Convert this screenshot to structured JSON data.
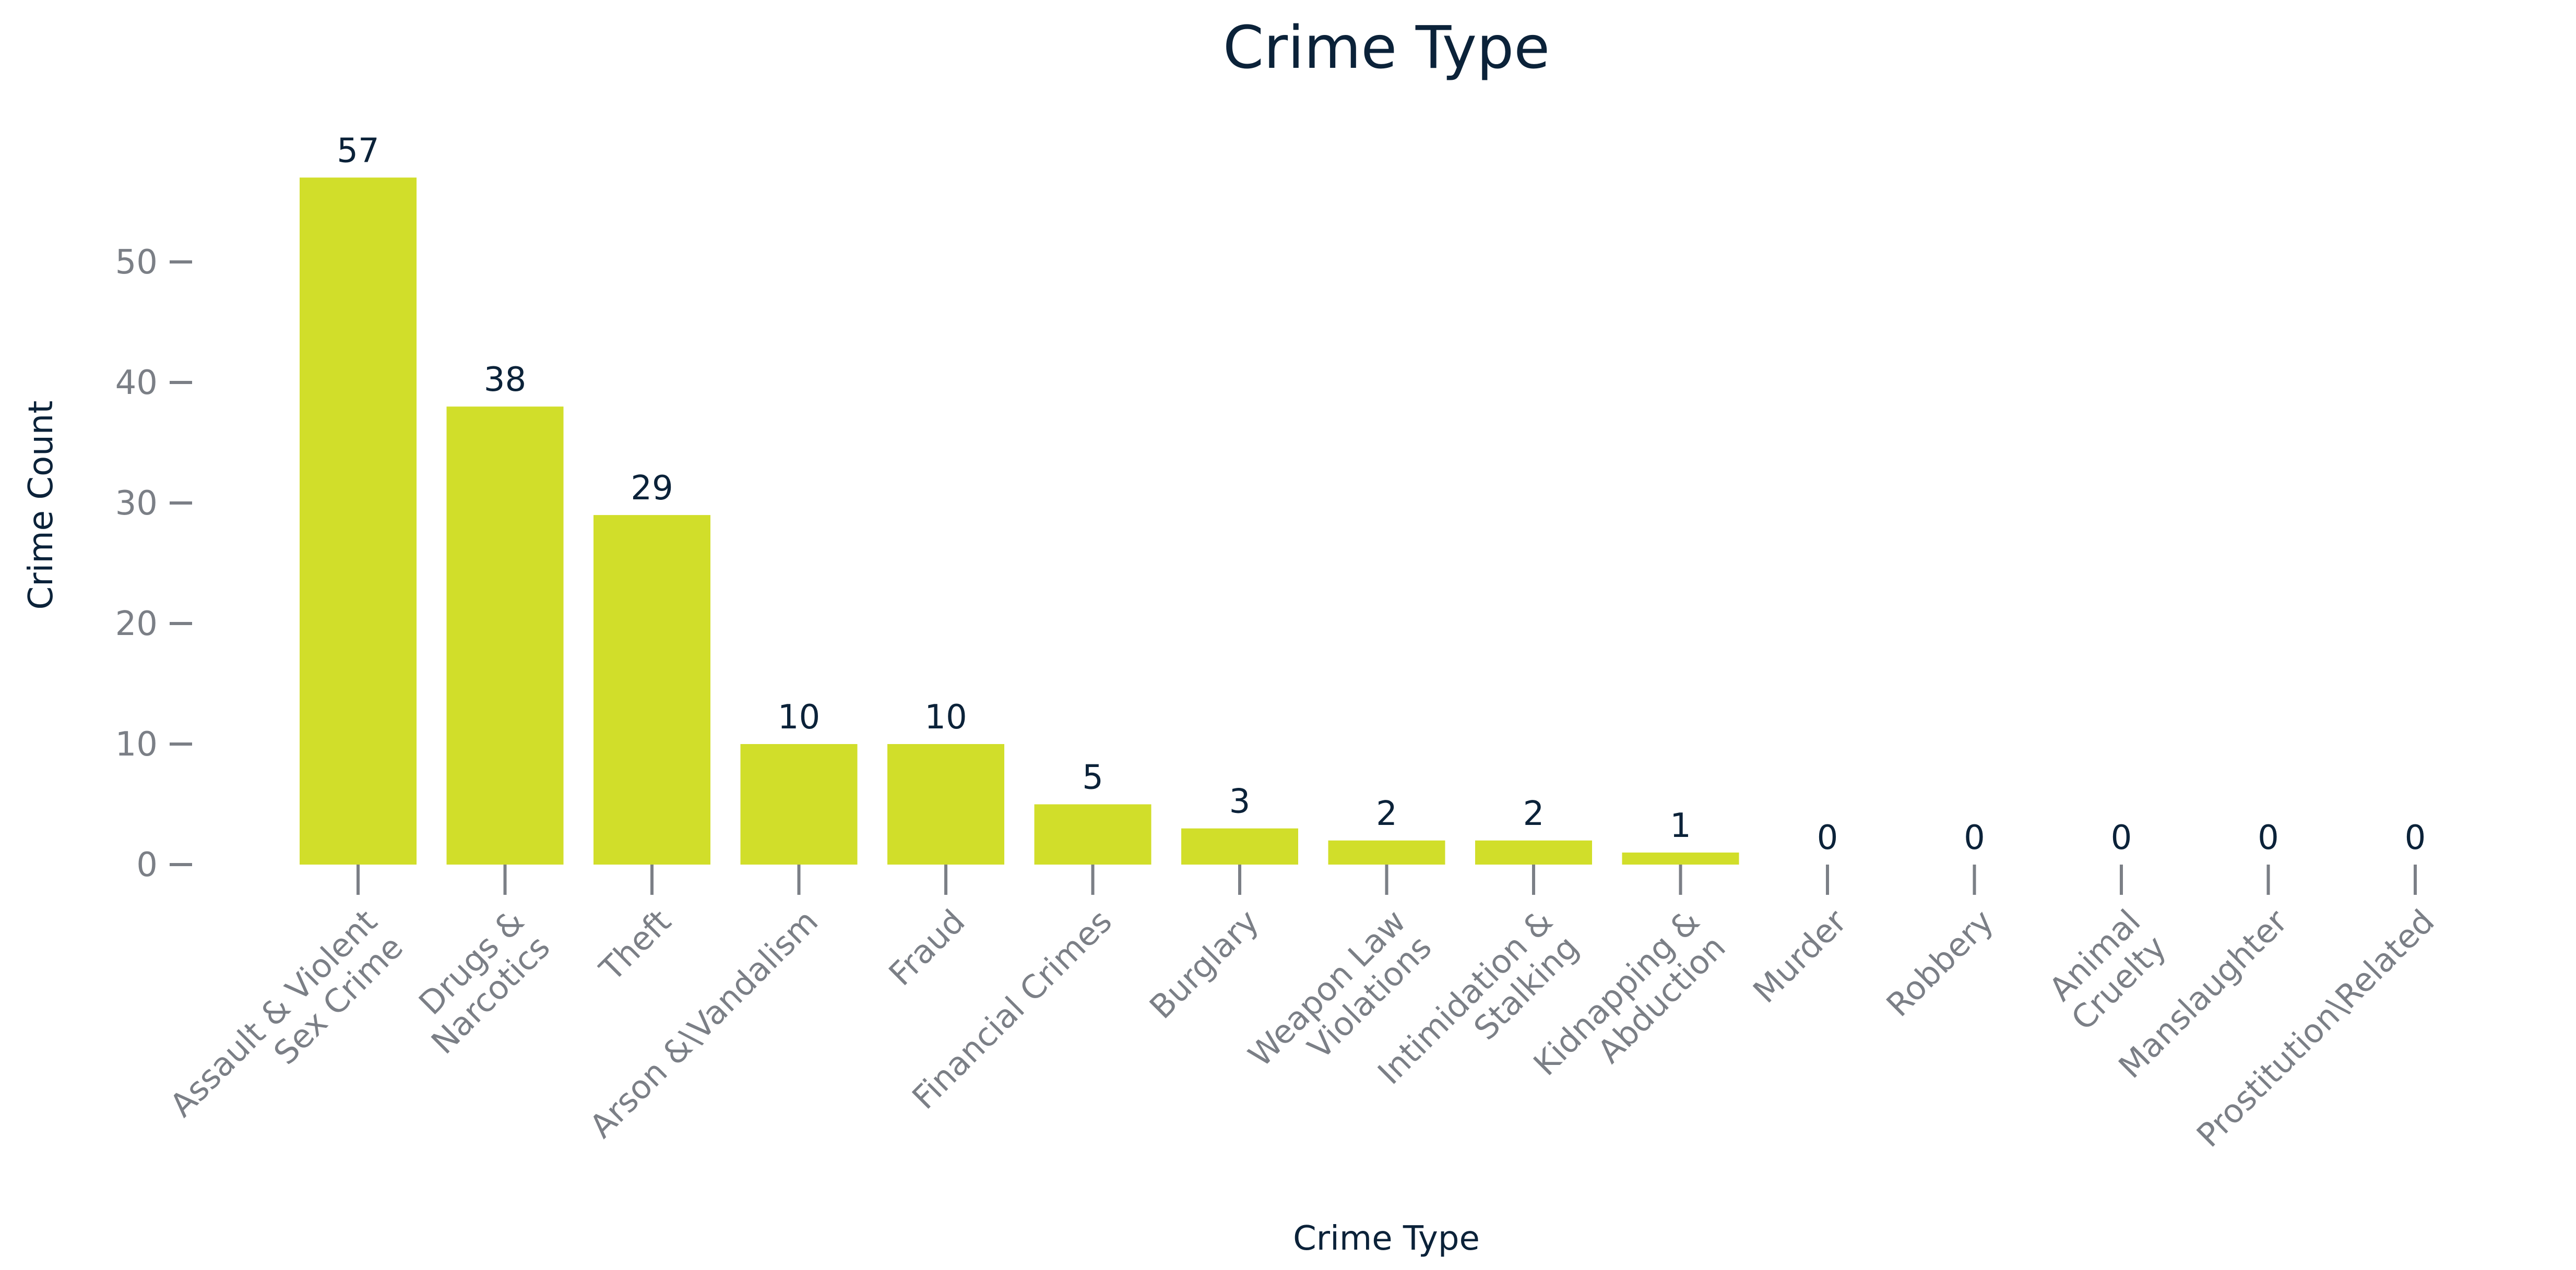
{
  "colors": {
    "bar": "#d1de2a",
    "title_text": "#0b2239",
    "tick_text": "#7b7f86"
  },
  "chart_data": {
    "type": "bar",
    "title": "Crime Type",
    "xlabel": "Crime Type",
    "ylabel": "Crime Count",
    "ylim": [
      0,
      57
    ],
    "yticks": [
      0,
      10,
      20,
      30,
      40,
      50
    ],
    "grid": false,
    "categories": [
      [
        "Assault & Violent",
        "Sex Crime"
      ],
      [
        "Drugs &",
        "Narcotics"
      ],
      [
        "Theft"
      ],
      [
        "Arson &\\Vandalism"
      ],
      [
        "Fraud"
      ],
      [
        "Financial Crimes"
      ],
      [
        "Burglary"
      ],
      [
        "Weapon Law",
        "Violations"
      ],
      [
        "Intimidation &",
        "Stalking"
      ],
      [
        "Kidnapping &",
        "Abduction"
      ],
      [
        "Murder"
      ],
      [
        "Robbery"
      ],
      [
        "Animal",
        "Cruelty"
      ],
      [
        "Manslaughter"
      ],
      [
        "Prostitution\\Related"
      ]
    ],
    "values": [
      57,
      38,
      29,
      10,
      10,
      5,
      3,
      2,
      2,
      1,
      0,
      0,
      0,
      0,
      0
    ]
  }
}
